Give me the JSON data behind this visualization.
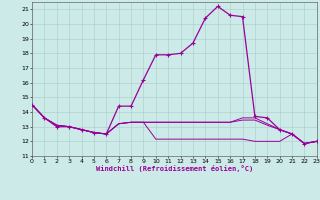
{
  "xlabel": "Windchill (Refroidissement éolien,°C)",
  "bg_color": "#cceae7",
  "grid_color": "#aacccc",
  "line_color": "#990099",
  "xlim": [
    0,
    23
  ],
  "ylim": [
    11,
    21.5
  ],
  "xticks": [
    0,
    1,
    2,
    3,
    4,
    5,
    6,
    7,
    8,
    9,
    10,
    11,
    12,
    13,
    14,
    15,
    16,
    17,
    18,
    19,
    20,
    21,
    22,
    23
  ],
  "yticks": [
    11,
    12,
    13,
    14,
    15,
    16,
    17,
    18,
    19,
    20,
    21
  ],
  "series": [
    {
      "y": [
        14.5,
        13.6,
        13.0,
        13.0,
        12.8,
        12.6,
        12.5,
        14.4,
        14.4,
        16.2,
        17.9,
        17.9,
        18.0,
        18.7,
        20.4,
        21.2,
        20.6,
        20.5,
        13.7,
        13.6,
        12.8,
        12.5,
        11.85,
        12.0
      ],
      "marker": true,
      "lw": 0.9
    },
    {
      "y": [
        14.5,
        13.6,
        13.1,
        13.0,
        12.8,
        12.6,
        12.5,
        13.2,
        13.3,
        13.3,
        13.3,
        13.3,
        13.3,
        13.3,
        13.3,
        13.3,
        13.3,
        13.45,
        13.45,
        13.1,
        12.8,
        12.5,
        11.85,
        12.0
      ],
      "marker": false,
      "lw": 0.7
    },
    {
      "y": [
        14.5,
        13.6,
        13.1,
        13.0,
        12.8,
        12.6,
        12.5,
        13.2,
        13.3,
        13.3,
        13.3,
        13.3,
        13.3,
        13.3,
        13.3,
        13.3,
        13.3,
        13.6,
        13.6,
        13.2,
        12.8,
        12.5,
        11.85,
        12.0
      ],
      "marker": false,
      "lw": 0.7
    },
    {
      "y": [
        14.5,
        13.6,
        13.1,
        13.0,
        12.8,
        12.6,
        12.5,
        13.2,
        13.3,
        13.3,
        12.15,
        12.15,
        12.15,
        12.15,
        12.15,
        12.15,
        12.15,
        12.15,
        12.0,
        12.0,
        12.0,
        12.5,
        11.85,
        12.0
      ],
      "marker": false,
      "lw": 0.7
    }
  ]
}
